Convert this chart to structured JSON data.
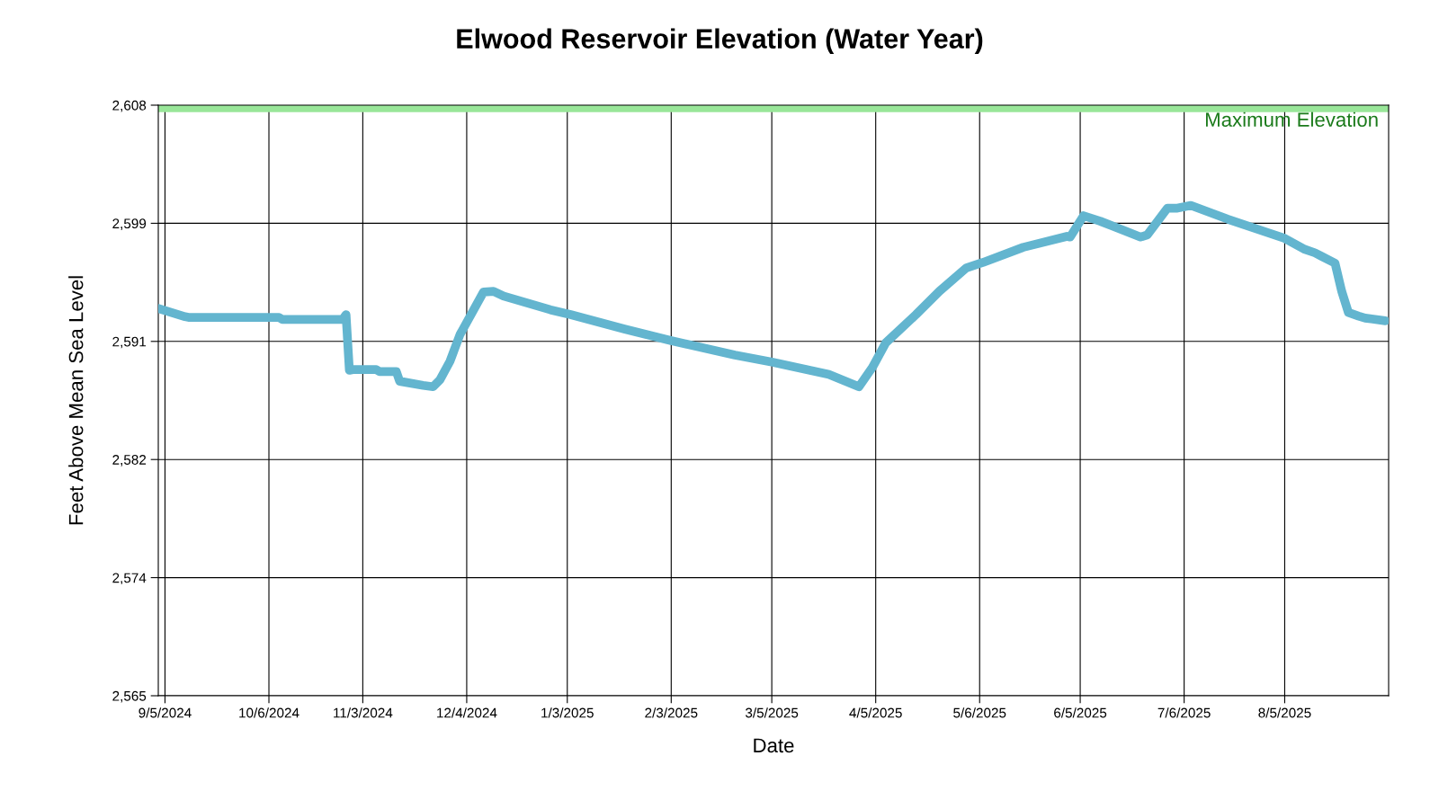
{
  "chart_data": {
    "type": "line",
    "title": "Elwood Reservoir Elevation (Water Year)",
    "xlabel": "Date",
    "ylabel": "Feet Above Mean Sea Level",
    "x": [
      "2024-09-03",
      "2024-09-11",
      "2024-09-12",
      "2024-10-09",
      "2024-10-10",
      "2024-10-28",
      "2024-10-29",
      "2024-10-30",
      "2024-10-31",
      "2024-11-07",
      "2024-11-08",
      "2024-11-13",
      "2024-11-14",
      "2024-11-21",
      "2024-11-24",
      "2024-11-26",
      "2024-11-29",
      "2024-12-02",
      "2024-12-09",
      "2024-12-12",
      "2024-12-15",
      "2024-12-29",
      "2025-01-04",
      "2025-01-20",
      "2025-02-03",
      "2025-02-22",
      "2025-03-05",
      "2025-03-22",
      "2025-03-31",
      "2025-04-02",
      "2025-04-04",
      "2025-04-08",
      "2025-04-17",
      "2025-04-24",
      "2025-05-02",
      "2025-05-07",
      "2025-05-19",
      "2025-06-01",
      "2025-06-02",
      "2025-06-06",
      "2025-06-11",
      "2025-06-23",
      "2025-06-25",
      "2025-07-01",
      "2025-07-04",
      "2025-07-08",
      "2025-07-19",
      "2025-08-05",
      "2025-08-11",
      "2025-08-14",
      "2025-08-16",
      "2025-08-20",
      "2025-08-22",
      "2025-08-24",
      "2025-08-27",
      "2025-08-29",
      "2025-09-04"
    ],
    "series": [
      {
        "color": "#63b5cf",
        "values": [
          2593.2,
          2592.6,
          2592.55,
          2592.55,
          2592.4,
          2592.4,
          2592.75,
          2588.7,
          2588.75,
          2588.75,
          2588.6,
          2588.6,
          2587.9,
          2587.6,
          2587.5,
          2588.0,
          2589.35,
          2591.3,
          2594.4,
          2594.45,
          2594.1,
          2593.1,
          2592.75,
          2591.7,
          2590.85,
          2589.8,
          2589.3,
          2588.4,
          2587.5,
          2588.2,
          2588.9,
          2590.7,
          2592.75,
          2594.45,
          2596.15,
          2596.55,
          2597.65,
          2598.45,
          2598.4,
          2599.95,
          2599.55,
          2598.4,
          2598.55,
          2600.5,
          2600.5,
          2600.7,
          2599.7,
          2598.3,
          2597.5,
          2597.25,
          2597.0,
          2596.5,
          2594.45,
          2592.9,
          2592.65,
          2592.5,
          2592.3
        ]
      }
    ],
    "xlim": [
      "2024-09-03",
      "2025-09-05"
    ],
    "xticks": [
      {
        "value": "2024-09-05",
        "label": "9/5/2024"
      },
      {
        "value": "2024-10-06",
        "label": "10/6/2024"
      },
      {
        "value": "2024-11-03",
        "label": "11/3/2024"
      },
      {
        "value": "2024-12-04",
        "label": "12/4/2024"
      },
      {
        "value": "2025-01-03",
        "label": "1/3/2025"
      },
      {
        "value": "2025-02-03",
        "label": "2/3/2025"
      },
      {
        "value": "2025-03-05",
        "label": "3/5/2025"
      },
      {
        "value": "2025-04-05",
        "label": "4/5/2025"
      },
      {
        "value": "2025-05-06",
        "label": "5/6/2025"
      },
      {
        "value": "2025-06-05",
        "label": "6/5/2025"
      },
      {
        "value": "2025-07-06",
        "label": "7/6/2025"
      },
      {
        "value": "2025-08-05",
        "label": "8/5/2025"
      }
    ],
    "ylim": [
      2565,
      2608
    ],
    "yticks": [
      {
        "value": 2565,
        "label": "2,565"
      },
      {
        "value": 2573.6,
        "label": "2,574"
      },
      {
        "value": 2582.2,
        "label": "2,582"
      },
      {
        "value": 2590.8,
        "label": "2,591"
      },
      {
        "value": 2599.4,
        "label": "2,599"
      },
      {
        "value": 2608,
        "label": "2,608"
      }
    ],
    "bands": [
      {
        "axis": "y",
        "from": 2607.5,
        "to": 2608,
        "label": "Maximum Elevation",
        "color": "#99e699"
      }
    ],
    "grid": true,
    "marker": "none",
    "line_style": "solid"
  }
}
